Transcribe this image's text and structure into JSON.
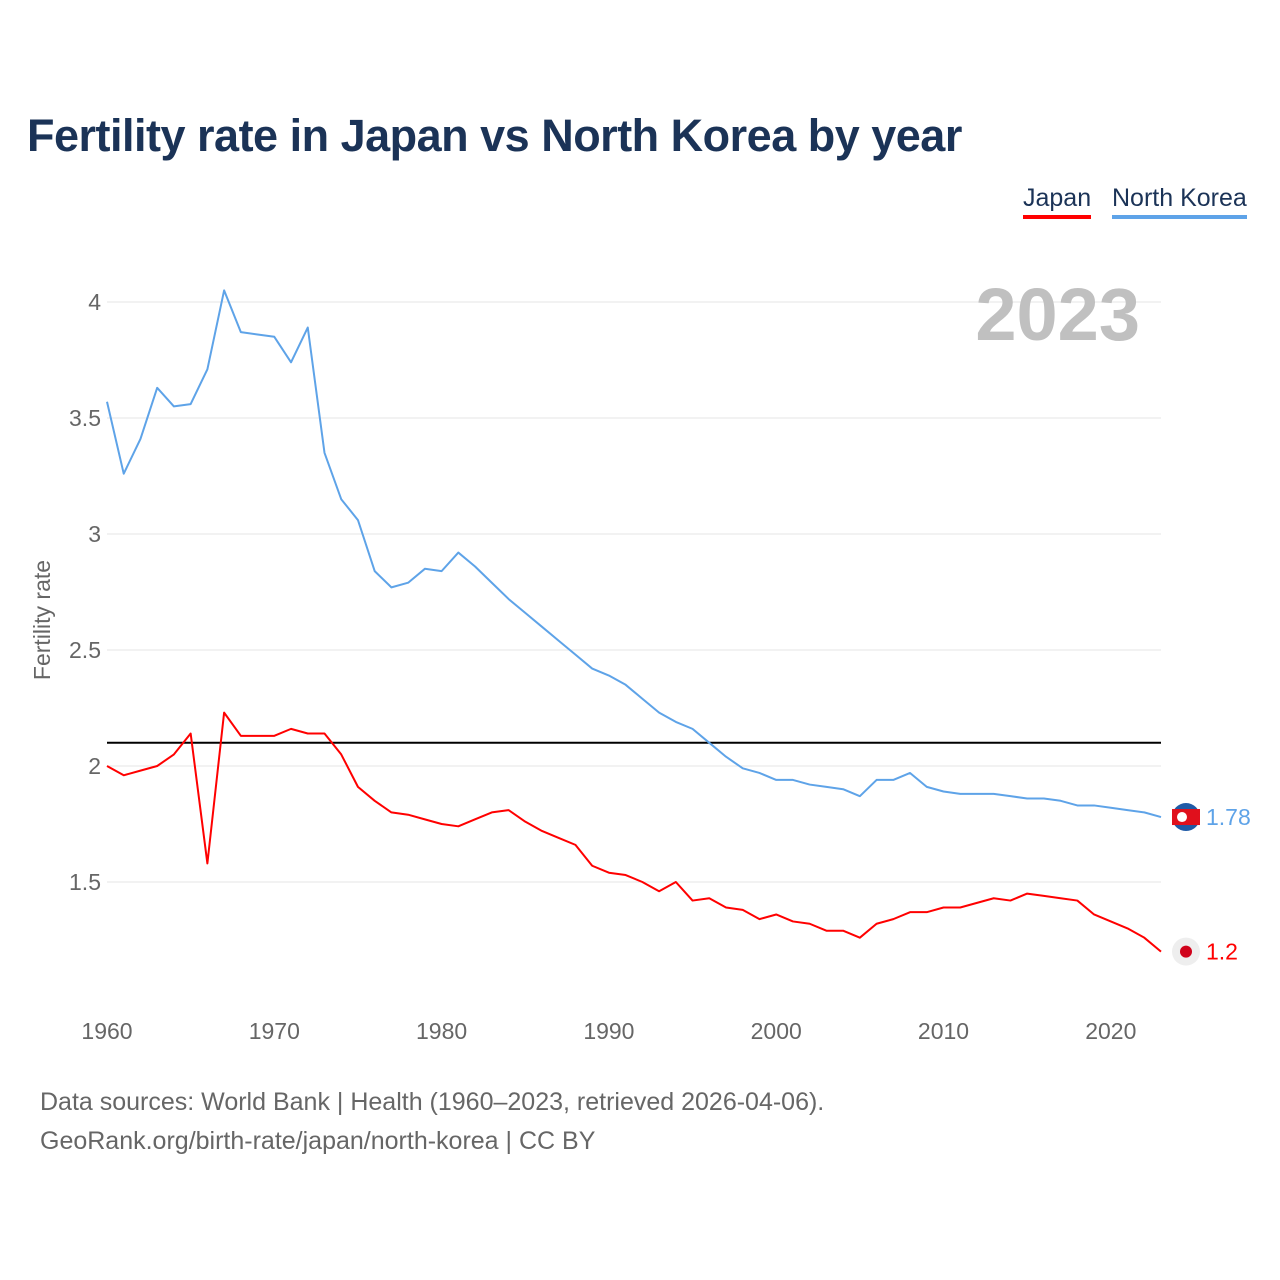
{
  "title": "Fertility rate in Japan vs North Korea by year",
  "footer": {
    "line1": "Data sources: World Bank | Health (1960–2023, retrieved 2026-04-06).",
    "line2": "GeoRank.org/birth-rate/japan/north-korea | CC BY"
  },
  "chart_data": {
    "type": "line",
    "title": "Fertility rate in Japan vs North Korea by year",
    "xlabel": "",
    "ylabel": "Fertility rate",
    "year_label": "2023",
    "xlim": [
      1960,
      2023
    ],
    "ylim": [
      1.1,
      4.1
    ],
    "x_ticks": [
      "1960",
      "1970",
      "1980",
      "1990",
      "2000",
      "2010",
      "2020"
    ],
    "y_ticks": [
      "1.5",
      "2",
      "2.5",
      "3",
      "3.5",
      "4"
    ],
    "reference_line": 2.1,
    "legend_position": "top-right",
    "x": [
      1960,
      1961,
      1962,
      1963,
      1964,
      1965,
      1966,
      1967,
      1968,
      1969,
      1970,
      1971,
      1972,
      1973,
      1974,
      1975,
      1976,
      1977,
      1978,
      1979,
      1980,
      1981,
      1982,
      1983,
      1984,
      1985,
      1986,
      1987,
      1988,
      1989,
      1990,
      1991,
      1992,
      1993,
      1994,
      1995,
      1996,
      1997,
      1998,
      1999,
      2000,
      2001,
      2002,
      2003,
      2004,
      2005,
      2006,
      2007,
      2008,
      2009,
      2010,
      2011,
      2012,
      2013,
      2014,
      2015,
      2016,
      2017,
      2018,
      2019,
      2020,
      2021,
      2022,
      2023
    ],
    "series": [
      {
        "name": "Japan",
        "color": "#ff0000",
        "end_label": "1.2",
        "values": [
          2.0,
          1.96,
          1.98,
          2.0,
          2.05,
          2.14,
          1.58,
          2.23,
          2.13,
          2.13,
          2.13,
          2.16,
          2.14,
          2.14,
          2.05,
          1.91,
          1.85,
          1.8,
          1.79,
          1.77,
          1.75,
          1.74,
          1.77,
          1.8,
          1.81,
          1.76,
          1.72,
          1.69,
          1.66,
          1.57,
          1.54,
          1.53,
          1.5,
          1.46,
          1.5,
          1.42,
          1.43,
          1.39,
          1.38,
          1.34,
          1.36,
          1.33,
          1.32,
          1.29,
          1.29,
          1.26,
          1.32,
          1.34,
          1.37,
          1.37,
          1.39,
          1.39,
          1.41,
          1.43,
          1.42,
          1.45,
          1.44,
          1.43,
          1.42,
          1.36,
          1.33,
          1.3,
          1.26,
          1.2
        ]
      },
      {
        "name": "North Korea",
        "color": "#5ea3e8",
        "end_label": "1.78",
        "values": [
          3.57,
          3.26,
          3.41,
          3.63,
          3.55,
          3.56,
          3.71,
          4.05,
          3.87,
          3.86,
          3.85,
          3.74,
          3.89,
          3.35,
          3.15,
          3.06,
          2.84,
          2.77,
          2.79,
          2.85,
          2.84,
          2.92,
          2.86,
          2.79,
          2.72,
          2.66,
          2.6,
          2.54,
          2.48,
          2.42,
          2.39,
          2.35,
          2.29,
          2.23,
          2.19,
          2.16,
          2.1,
          2.04,
          1.99,
          1.97,
          1.94,
          1.94,
          1.92,
          1.91,
          1.9,
          1.87,
          1.94,
          1.94,
          1.97,
          1.91,
          1.89,
          1.88,
          1.88,
          1.88,
          1.87,
          1.86,
          1.86,
          1.85,
          1.83,
          1.83,
          1.82,
          1.81,
          1.8,
          1.78
        ]
      }
    ]
  }
}
